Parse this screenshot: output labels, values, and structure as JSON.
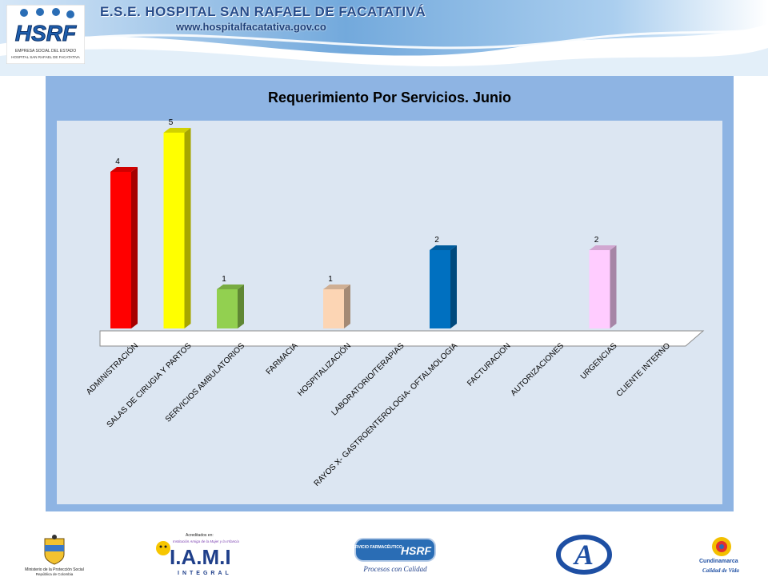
{
  "header": {
    "title": "E.S.E. HOSPITAL SAN RAFAEL DE FACATATIVÁ",
    "url": "www.hospitalfacatativa.gov.co",
    "logo_text": "HSRF",
    "logo_caption_1": "EMPRESA SOCIAL DEL ESTADO",
    "logo_caption_2": "HOSPITAL SAN RAFAEL DE FACATATIVA"
  },
  "chart_data": {
    "type": "bar",
    "title": "Requerimiento Por Servicios. Junio",
    "categories": [
      "ADMINISTRACIÓN",
      "SALAS DE CIRUGIA Y PARTOS",
      "SERVICIOS AMBULATORIOS",
      "FARMACIA",
      "HOSPITALIZACIÓN",
      "LABORATORIO/TERAPIAS",
      "RAYOS X- GASTROENTEROLOGIA- OFTALMOLOGIA",
      "FACTURACION",
      "AUTORIZACIONES",
      "URGENCIAS",
      "CLIENTE INTERNO"
    ],
    "values": [
      4,
      5,
      1,
      0,
      1,
      0,
      2,
      0,
      0,
      2,
      0
    ],
    "data_labels": [
      "4",
      "5",
      "1",
      "",
      "1",
      "",
      "2",
      "",
      "",
      "2",
      ""
    ],
    "colors": [
      "#ff0000",
      "#ffff00",
      "#92d050",
      "#ffffff",
      "#fcd5b4",
      "#ffffff",
      "#0070c0",
      "#ffffff",
      "#ffffff",
      "#ffccff",
      "#ffffff"
    ],
    "ylim": [
      0,
      5
    ],
    "xlabel": "",
    "ylabel": "",
    "grid": false,
    "legend": "none",
    "style": "3d-column"
  },
  "footer": {
    "logos": [
      {
        "icon": "colombia-coat-of-arms-icon",
        "line1": "Ministerio de la Protección Social",
        "line2": "República de Colombia"
      },
      {
        "icon": "iami-logo-icon",
        "line1": "Acreditados en:",
        "line2": "Institución Amiga de la Mujer y la Infancia",
        "big": "I.A.M.I",
        "sub": "INTEGRAL"
      },
      {
        "icon": "servicio-farmaceutico-icon",
        "line1": "SERVICIO FARMACÉUTICO",
        "big": "HSRF",
        "sub": "Procesos con Calidad"
      },
      {
        "icon": "acreditacion-a-icon"
      },
      {
        "icon": "cundinamarca-icon",
        "line1": "Cundinamarca",
        "sub": "Calidad de Vida"
      }
    ]
  }
}
